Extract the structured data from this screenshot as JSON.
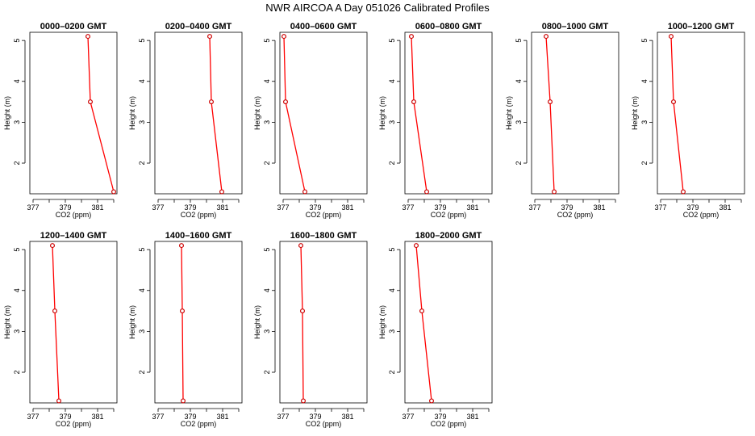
{
  "figure": {
    "title": "NWR AIRCOA A  Day 051026  Calibrated Profiles",
    "line_color": "#ff0000",
    "point_color": "#cc0000"
  },
  "chart_data": [
    {
      "type": "line",
      "title": "0000–0200 GMT",
      "xlabel": "CO2 (ppm)",
      "ylabel": "Height (m)",
      "xlim": [
        376.8,
        382.2
      ],
      "ylim": [
        1.25,
        5.2
      ],
      "xticks": [
        377,
        378,
        379,
        380,
        381,
        382
      ],
      "xtick_labels": [
        "377",
        "",
        "379",
        "",
        "381",
        ""
      ],
      "yticks": [
        2,
        3,
        4,
        5
      ],
      "ytick_labels": [
        "2",
        "3",
        "4",
        "5"
      ],
      "series": [
        {
          "x": [
            380.4,
            380.55,
            382.0
          ],
          "y": [
            5.1,
            3.5,
            1.3
          ]
        }
      ]
    },
    {
      "type": "line",
      "title": "0200–0400 GMT",
      "xlabel": "CO2 (ppm)",
      "ylabel": "Height (m)",
      "xlim": [
        376.8,
        382.2
      ],
      "ylim": [
        1.25,
        5.2
      ],
      "xticks": [
        377,
        378,
        379,
        380,
        381,
        382
      ],
      "xtick_labels": [
        "377",
        "",
        "379",
        "",
        "381",
        ""
      ],
      "yticks": [
        2,
        3,
        4,
        5
      ],
      "ytick_labels": [
        "2",
        "3",
        "4",
        "5"
      ],
      "series": [
        {
          "x": [
            380.2,
            380.3,
            380.95
          ],
          "y": [
            5.1,
            3.5,
            1.3
          ]
        }
      ]
    },
    {
      "type": "line",
      "title": "0400–0600 GMT",
      "xlabel": "CO2 (ppm)",
      "ylabel": "Height (m)",
      "xlim": [
        376.8,
        382.2
      ],
      "ylim": [
        1.25,
        5.2
      ],
      "xticks": [
        377,
        378,
        379,
        380,
        381,
        382
      ],
      "xtick_labels": [
        "377",
        "",
        "379",
        "",
        "381",
        ""
      ],
      "yticks": [
        2,
        3,
        4,
        5
      ],
      "ytick_labels": [
        "2",
        "3",
        "4",
        "5"
      ],
      "series": [
        {
          "x": [
            377.05,
            377.15,
            378.35
          ],
          "y": [
            5.1,
            3.5,
            1.3
          ]
        }
      ]
    },
    {
      "type": "line",
      "title": "0600–0800 GMT",
      "xlabel": "CO2 (ppm)",
      "ylabel": "Height (m)",
      "xlim": [
        376.8,
        382.2
      ],
      "ylim": [
        1.25,
        5.2
      ],
      "xticks": [
        377,
        378,
        379,
        380,
        381,
        382
      ],
      "xtick_labels": [
        "377",
        "",
        "379",
        "",
        "381",
        ""
      ],
      "yticks": [
        2,
        3,
        4,
        5
      ],
      "ytick_labels": [
        "2",
        "3",
        "4",
        "5"
      ],
      "series": [
        {
          "x": [
            377.2,
            377.35,
            378.15
          ],
          "y": [
            5.1,
            3.5,
            1.3
          ]
        }
      ]
    },
    {
      "type": "line",
      "title": "0800–1000 GMT",
      "xlabel": "CO2 (ppm)",
      "ylabel": "Height (m)",
      "xlim": [
        376.8,
        382.2
      ],
      "ylim": [
        1.25,
        5.2
      ],
      "xticks": [
        377,
        378,
        379,
        380,
        381,
        382
      ],
      "xtick_labels": [
        "377",
        "",
        "379",
        "",
        "381",
        ""
      ],
      "yticks": [
        2,
        3,
        4,
        5
      ],
      "ytick_labels": [
        "2",
        "3",
        "4",
        "5"
      ],
      "series": [
        {
          "x": [
            377.7,
            377.95,
            378.2
          ],
          "y": [
            5.1,
            3.5,
            1.3
          ]
        }
      ]
    },
    {
      "type": "line",
      "title": "1000–1200 GMT",
      "xlabel": "CO2 (ppm)",
      "ylabel": "Height (m)",
      "xlim": [
        376.8,
        382.2
      ],
      "ylim": [
        1.25,
        5.2
      ],
      "xticks": [
        377,
        378,
        379,
        380,
        381,
        382
      ],
      "xtick_labels": [
        "377",
        "",
        "379",
        "",
        "381",
        ""
      ],
      "yticks": [
        2,
        3,
        4,
        5
      ],
      "ytick_labels": [
        "2",
        "3",
        "4",
        "5"
      ],
      "series": [
        {
          "x": [
            377.65,
            377.8,
            378.4
          ],
          "y": [
            5.1,
            3.5,
            1.3
          ]
        }
      ]
    },
    {
      "type": "line",
      "title": "1200–1400 GMT",
      "xlabel": "CO2 (ppm)",
      "ylabel": "Height (m)",
      "xlim": [
        376.8,
        382.2
      ],
      "ylim": [
        1.25,
        5.2
      ],
      "xticks": [
        377,
        378,
        379,
        380,
        381,
        382
      ],
      "xtick_labels": [
        "377",
        "",
        "379",
        "",
        "381",
        ""
      ],
      "yticks": [
        2,
        3,
        4,
        5
      ],
      "ytick_labels": [
        "2",
        "3",
        "4",
        "5"
      ],
      "series": [
        {
          "x": [
            378.2,
            378.35,
            378.6
          ],
          "y": [
            5.1,
            3.5,
            1.3
          ]
        }
      ]
    },
    {
      "type": "line",
      "title": "1400–1600 GMT",
      "xlabel": "CO2 (ppm)",
      "ylabel": "Height (m)",
      "xlim": [
        376.8,
        382.2
      ],
      "ylim": [
        1.25,
        5.2
      ],
      "xticks": [
        377,
        378,
        379,
        380,
        381,
        382
      ],
      "xtick_labels": [
        "377",
        "",
        "379",
        "",
        "381",
        ""
      ],
      "yticks": [
        2,
        3,
        4,
        5
      ],
      "ytick_labels": [
        "2",
        "3",
        "4",
        "5"
      ],
      "series": [
        {
          "x": [
            378.45,
            378.5,
            378.55
          ],
          "y": [
            5.1,
            3.5,
            1.3
          ]
        }
      ]
    },
    {
      "type": "line",
      "title": "1600–1800 GMT",
      "xlabel": "CO2 (ppm)",
      "ylabel": "Height (m)",
      "xlim": [
        376.8,
        382.2
      ],
      "ylim": [
        1.25,
        5.2
      ],
      "xticks": [
        377,
        378,
        379,
        380,
        381,
        382
      ],
      "xtick_labels": [
        "377",
        "",
        "379",
        "",
        "381",
        ""
      ],
      "yticks": [
        2,
        3,
        4,
        5
      ],
      "ytick_labels": [
        "2",
        "3",
        "4",
        "5"
      ],
      "series": [
        {
          "x": [
            378.1,
            378.2,
            378.25
          ],
          "y": [
            5.1,
            3.5,
            1.3
          ]
        }
      ]
    },
    {
      "type": "line",
      "title": "1800–2000 GMT",
      "xlabel": "CO2 (ppm)",
      "ylabel": "Height (m)",
      "xlim": [
        376.8,
        382.2
      ],
      "ylim": [
        1.25,
        5.2
      ],
      "xticks": [
        377,
        378,
        379,
        380,
        381,
        382
      ],
      "xtick_labels": [
        "377",
        "",
        "379",
        "",
        "381",
        ""
      ],
      "yticks": [
        2,
        3,
        4,
        5
      ],
      "ytick_labels": [
        "2",
        "3",
        "4",
        "5"
      ],
      "series": [
        {
          "x": [
            377.5,
            377.85,
            378.45
          ],
          "y": [
            5.1,
            3.5,
            1.3
          ]
        }
      ]
    }
  ]
}
